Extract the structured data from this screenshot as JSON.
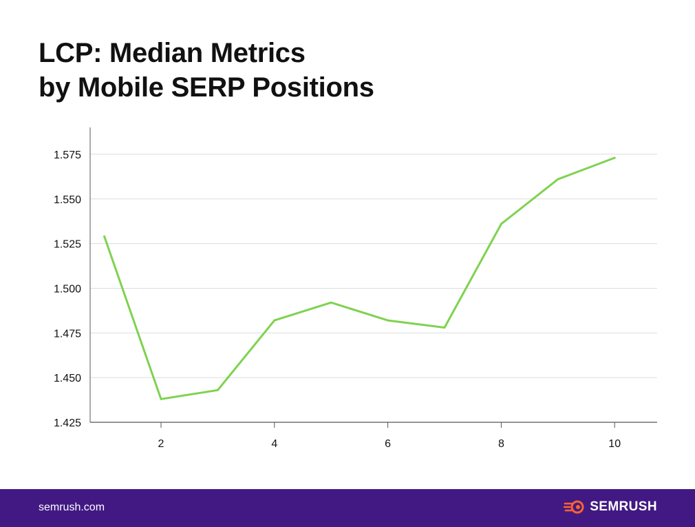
{
  "title_line1": "LCP: Median Metrics",
  "title_line2": "by Mobile SERP Positions",
  "footer": {
    "site": "semrush.com",
    "brand": "SEMRUSH"
  },
  "colors": {
    "line": "#7ed24f",
    "grid": "#dcdcdc",
    "footer_bg": "#421983",
    "logo_accent": "#ff642d"
  },
  "chart_data": {
    "type": "line",
    "title": "LCP: Median Metrics by Mobile SERP Positions",
    "xlabel": "",
    "ylabel": "",
    "x": [
      1,
      2,
      3,
      4,
      5,
      6,
      7,
      8,
      9,
      10
    ],
    "values": [
      1.529,
      1.438,
      1.443,
      1.482,
      1.492,
      1.482,
      1.478,
      1.536,
      1.561,
      1.573
    ],
    "x_ticks": [
      2,
      4,
      6,
      8,
      10
    ],
    "y_ticks": [
      "1.425",
      "1.450",
      "1.475",
      "1.500",
      "1.525",
      "1.550",
      "1.575"
    ],
    "xlim": [
      0.75,
      10.75
    ],
    "ylim": [
      1.425,
      1.59
    ],
    "grid": "horizontal",
    "legend": "none"
  }
}
